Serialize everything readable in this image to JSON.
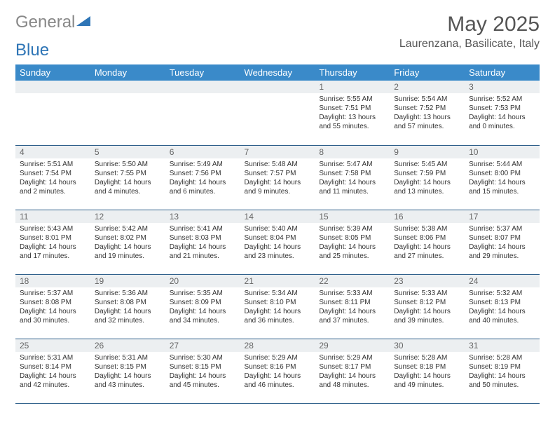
{
  "logo": {
    "text1": "General",
    "text2": "Blue"
  },
  "title": "May 2025",
  "location": "Laurenzana, Basilicate, Italy",
  "colors": {
    "header_bg": "#3a8ac9",
    "header_text": "#ffffff",
    "daynum_bg": "#eceff1",
    "border": "#2e5f8a",
    "logo_blue": "#2e75b6"
  },
  "weekdays": [
    "Sunday",
    "Monday",
    "Tuesday",
    "Wednesday",
    "Thursday",
    "Friday",
    "Saturday"
  ],
  "weeks": [
    [
      {
        "n": "",
        "sr": "",
        "ss": "",
        "dl": ""
      },
      {
        "n": "",
        "sr": "",
        "ss": "",
        "dl": ""
      },
      {
        "n": "",
        "sr": "",
        "ss": "",
        "dl": ""
      },
      {
        "n": "",
        "sr": "",
        "ss": "",
        "dl": ""
      },
      {
        "n": "1",
        "sr": "5:55 AM",
        "ss": "7:51 PM",
        "dl": "13 hours and 55 minutes."
      },
      {
        "n": "2",
        "sr": "5:54 AM",
        "ss": "7:52 PM",
        "dl": "13 hours and 57 minutes."
      },
      {
        "n": "3",
        "sr": "5:52 AM",
        "ss": "7:53 PM",
        "dl": "14 hours and 0 minutes."
      }
    ],
    [
      {
        "n": "4",
        "sr": "5:51 AM",
        "ss": "7:54 PM",
        "dl": "14 hours and 2 minutes."
      },
      {
        "n": "5",
        "sr": "5:50 AM",
        "ss": "7:55 PM",
        "dl": "14 hours and 4 minutes."
      },
      {
        "n": "6",
        "sr": "5:49 AM",
        "ss": "7:56 PM",
        "dl": "14 hours and 6 minutes."
      },
      {
        "n": "7",
        "sr": "5:48 AM",
        "ss": "7:57 PM",
        "dl": "14 hours and 9 minutes."
      },
      {
        "n": "8",
        "sr": "5:47 AM",
        "ss": "7:58 PM",
        "dl": "14 hours and 11 minutes."
      },
      {
        "n": "9",
        "sr": "5:45 AM",
        "ss": "7:59 PM",
        "dl": "14 hours and 13 minutes."
      },
      {
        "n": "10",
        "sr": "5:44 AM",
        "ss": "8:00 PM",
        "dl": "14 hours and 15 minutes."
      }
    ],
    [
      {
        "n": "11",
        "sr": "5:43 AM",
        "ss": "8:01 PM",
        "dl": "14 hours and 17 minutes."
      },
      {
        "n": "12",
        "sr": "5:42 AM",
        "ss": "8:02 PM",
        "dl": "14 hours and 19 minutes."
      },
      {
        "n": "13",
        "sr": "5:41 AM",
        "ss": "8:03 PM",
        "dl": "14 hours and 21 minutes."
      },
      {
        "n": "14",
        "sr": "5:40 AM",
        "ss": "8:04 PM",
        "dl": "14 hours and 23 minutes."
      },
      {
        "n": "15",
        "sr": "5:39 AM",
        "ss": "8:05 PM",
        "dl": "14 hours and 25 minutes."
      },
      {
        "n": "16",
        "sr": "5:38 AM",
        "ss": "8:06 PM",
        "dl": "14 hours and 27 minutes."
      },
      {
        "n": "17",
        "sr": "5:37 AM",
        "ss": "8:07 PM",
        "dl": "14 hours and 29 minutes."
      }
    ],
    [
      {
        "n": "18",
        "sr": "5:37 AM",
        "ss": "8:08 PM",
        "dl": "14 hours and 30 minutes."
      },
      {
        "n": "19",
        "sr": "5:36 AM",
        "ss": "8:08 PM",
        "dl": "14 hours and 32 minutes."
      },
      {
        "n": "20",
        "sr": "5:35 AM",
        "ss": "8:09 PM",
        "dl": "14 hours and 34 minutes."
      },
      {
        "n": "21",
        "sr": "5:34 AM",
        "ss": "8:10 PM",
        "dl": "14 hours and 36 minutes."
      },
      {
        "n": "22",
        "sr": "5:33 AM",
        "ss": "8:11 PM",
        "dl": "14 hours and 37 minutes."
      },
      {
        "n": "23",
        "sr": "5:33 AM",
        "ss": "8:12 PM",
        "dl": "14 hours and 39 minutes."
      },
      {
        "n": "24",
        "sr": "5:32 AM",
        "ss": "8:13 PM",
        "dl": "14 hours and 40 minutes."
      }
    ],
    [
      {
        "n": "25",
        "sr": "5:31 AM",
        "ss": "8:14 PM",
        "dl": "14 hours and 42 minutes."
      },
      {
        "n": "26",
        "sr": "5:31 AM",
        "ss": "8:15 PM",
        "dl": "14 hours and 43 minutes."
      },
      {
        "n": "27",
        "sr": "5:30 AM",
        "ss": "8:15 PM",
        "dl": "14 hours and 45 minutes."
      },
      {
        "n": "28",
        "sr": "5:29 AM",
        "ss": "8:16 PM",
        "dl": "14 hours and 46 minutes."
      },
      {
        "n": "29",
        "sr": "5:29 AM",
        "ss": "8:17 PM",
        "dl": "14 hours and 48 minutes."
      },
      {
        "n": "30",
        "sr": "5:28 AM",
        "ss": "8:18 PM",
        "dl": "14 hours and 49 minutes."
      },
      {
        "n": "31",
        "sr": "5:28 AM",
        "ss": "8:19 PM",
        "dl": "14 hours and 50 minutes."
      }
    ]
  ],
  "labels": {
    "sunrise": "Sunrise:",
    "sunset": "Sunset:",
    "daylight": "Daylight:"
  }
}
